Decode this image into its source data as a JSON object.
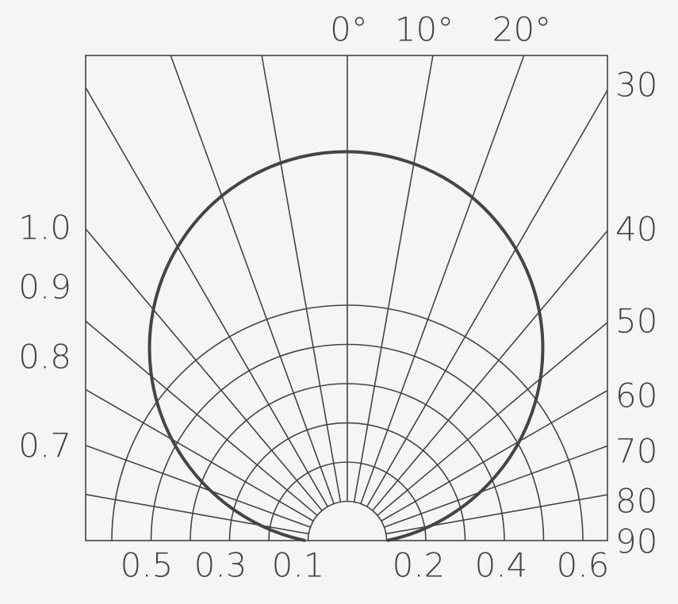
{
  "top_labels": [
    "0°",
    "10°",
    "20°"
  ],
  "right_labels": [
    "30",
    "40",
    "50",
    "60",
    "70",
    "80",
    "90"
  ],
  "left_labels": [
    "1.0",
    "0.9",
    "0.8",
    "0.7"
  ],
  "bottom_labels": [
    "0.5",
    "0.3",
    "0.1",
    "0.2",
    "0.4",
    "0.6"
  ]
}
